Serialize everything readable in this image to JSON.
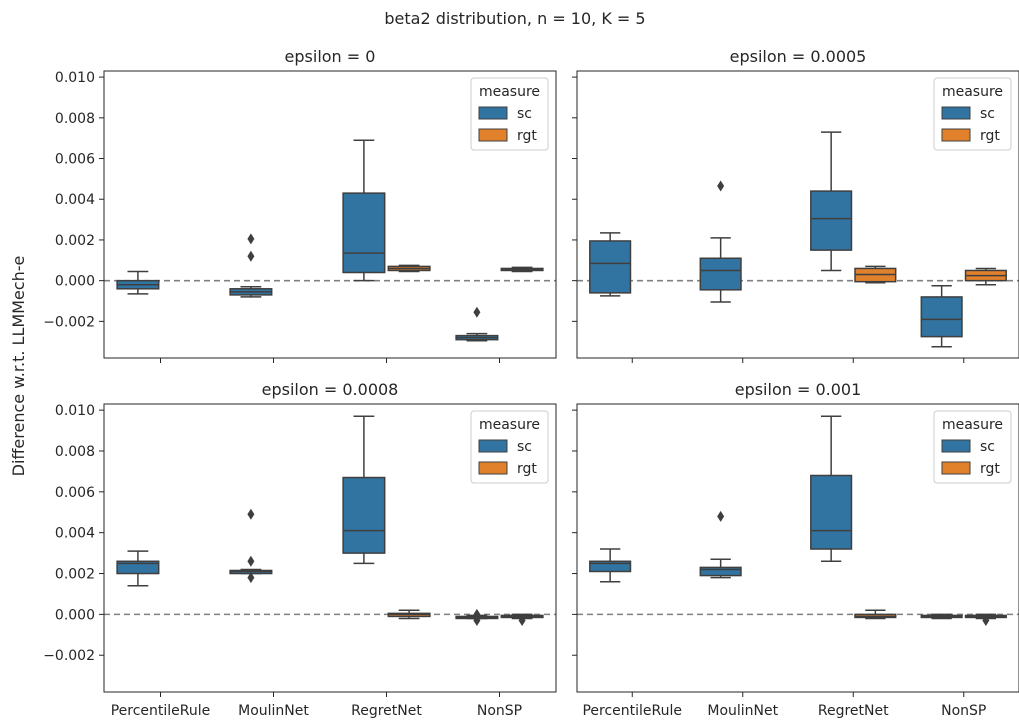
{
  "suptitle": "beta2 distribution, n = 10, K = 5",
  "ylabel": "Difference w.r.t. LLMMech-e",
  "legend_title": "measure",
  "colors": {
    "sc": "#3274a1",
    "rgt": "#e1812c",
    "box_edge": "#3f3f3f",
    "zero_line": "#808080"
  },
  "chart_data": [
    {
      "type": "box",
      "title": "epsilon = 0",
      "categories": [
        "PercentileRule",
        "MoulinNet",
        "RegretNet",
        "NonSP"
      ],
      "ylim": [
        -0.0038,
        0.0103
      ],
      "yticks": [
        -0.002,
        0.0,
        0.002,
        0.004,
        0.006,
        0.008,
        0.01
      ],
      "ytick_labels": [
        "−0.002",
        "0.000",
        "0.002",
        "0.004",
        "0.006",
        "0.008",
        "0.010"
      ],
      "series": [
        {
          "name": "sc",
          "boxes": [
            {
              "whislo": -0.00065,
              "q1": -0.0004,
              "med": -0.0002,
              "q3": 0.0,
              "whishi": 0.00045,
              "fliers": []
            },
            {
              "whislo": -0.0008,
              "q1": -0.0007,
              "med": -0.00055,
              "q3": -0.0004,
              "whishi": -0.0003,
              "fliers": [
                0.0012,
                0.00205
              ]
            },
            {
              "whislo": 0.0,
              "q1": 0.0004,
              "med": 0.00135,
              "q3": 0.0043,
              "whishi": 0.0069,
              "fliers": []
            },
            {
              "whislo": -0.00295,
              "q1": -0.0029,
              "med": -0.0028,
              "q3": -0.0027,
              "whishi": -0.0026,
              "fliers": [
                -0.00155
              ]
            }
          ]
        },
        {
          "name": "rgt",
          "boxes": [
            null,
            null,
            {
              "whislo": 0.00045,
              "q1": 0.0005,
              "med": 0.0006,
              "q3": 0.0007,
              "whishi": 0.00075,
              "fliers": []
            },
            {
              "whislo": 0.00045,
              "q1": 0.0005,
              "med": 0.00055,
              "q3": 0.0006,
              "whishi": 0.00065,
              "fliers": []
            }
          ]
        }
      ]
    },
    {
      "type": "box",
      "title": "epsilon = 0.0005",
      "categories": [
        "PercentileRule",
        "MoulinNet",
        "RegretNet",
        "NonSP"
      ],
      "ylim": [
        -0.0038,
        0.0103
      ],
      "yticks": [
        -0.002,
        0.0,
        0.002,
        0.004,
        0.006,
        0.008,
        0.01
      ],
      "ytick_labels": [
        "−0.002",
        "0.000",
        "0.002",
        "0.004",
        "0.006",
        "0.008",
        "0.010"
      ],
      "series": [
        {
          "name": "sc",
          "boxes": [
            {
              "whislo": -0.00075,
              "q1": -0.0006,
              "med": 0.00085,
              "q3": 0.00195,
              "whishi": 0.00235,
              "fliers": []
            },
            {
              "whislo": -0.00105,
              "q1": -0.00045,
              "med": 0.0005,
              "q3": 0.0011,
              "whishi": 0.0021,
              "fliers": [
                0.00465
              ]
            },
            {
              "whislo": 0.0005,
              "q1": 0.0015,
              "med": 0.00305,
              "q3": 0.0044,
              "whishi": 0.0073,
              "fliers": []
            },
            {
              "whislo": -0.00325,
              "q1": -0.00275,
              "med": -0.0019,
              "q3": -0.0008,
              "whishi": -0.00025,
              "fliers": []
            }
          ]
        },
        {
          "name": "rgt",
          "boxes": [
            null,
            null,
            {
              "whislo": -0.0001,
              "q1": -5e-05,
              "med": 0.0003,
              "q3": 0.0006,
              "whishi": 0.0007,
              "fliers": []
            },
            {
              "whislo": -0.0002,
              "q1": 0.0,
              "med": 0.00025,
              "q3": 0.0005,
              "whishi": 0.0006,
              "fliers": []
            }
          ]
        }
      ]
    },
    {
      "type": "box",
      "title": "epsilon = 0.0008",
      "categories": [
        "PercentileRule",
        "MoulinNet",
        "RegretNet",
        "NonSP"
      ],
      "ylim": [
        -0.0038,
        0.0103
      ],
      "yticks": [
        -0.002,
        0.0,
        0.002,
        0.004,
        0.006,
        0.008,
        0.01
      ],
      "ytick_labels": [
        "−0.002",
        "0.000",
        "0.002",
        "0.004",
        "0.006",
        "0.008",
        "0.010"
      ],
      "series": [
        {
          "name": "sc",
          "boxes": [
            {
              "whislo": 0.0014,
              "q1": 0.002,
              "med": 0.0025,
              "q3": 0.0026,
              "whishi": 0.0031,
              "fliers": []
            },
            {
              "whislo": 0.002,
              "q1": 0.002,
              "med": 0.0021,
              "q3": 0.00215,
              "whishi": 0.0022,
              "fliers": [
                0.0049,
                0.0026,
                0.0018
              ]
            },
            {
              "whislo": 0.0025,
              "q1": 0.003,
              "med": 0.0041,
              "q3": 0.0067,
              "whishi": 0.0097,
              "fliers": []
            },
            {
              "whislo": -0.0002,
              "q1": -0.0002,
              "med": -0.00015,
              "q3": -0.0001,
              "whishi": -5e-05,
              "fliers": [
                -0.0003,
                0.0
              ]
            }
          ]
        },
        {
          "name": "rgt",
          "boxes": [
            null,
            null,
            {
              "whislo": -0.0002,
              "q1": -0.0001,
              "med": 0.0,
              "q3": 5e-05,
              "whishi": 0.0002,
              "fliers": []
            },
            {
              "whislo": -0.0002,
              "q1": -0.00015,
              "med": -0.0001,
              "q3": -5e-05,
              "whishi": 0.0,
              "fliers": [
                -0.0003
              ]
            }
          ]
        }
      ]
    },
    {
      "type": "box",
      "title": "epsilon = 0.001",
      "categories": [
        "PercentileRule",
        "MoulinNet",
        "RegretNet",
        "NonSP"
      ],
      "ylim": [
        -0.0038,
        0.0103
      ],
      "yticks": [
        -0.002,
        0.0,
        0.002,
        0.004,
        0.006,
        0.008,
        0.01
      ],
      "ytick_labels": [
        "−0.002",
        "0.000",
        "0.002",
        "0.004",
        "0.006",
        "0.008",
        "0.010"
      ],
      "series": [
        {
          "name": "sc",
          "boxes": [
            {
              "whislo": 0.0016,
              "q1": 0.0021,
              "med": 0.0025,
              "q3": 0.0026,
              "whishi": 0.0032,
              "fliers": []
            },
            {
              "whislo": 0.0018,
              "q1": 0.0019,
              "med": 0.0022,
              "q3": 0.0023,
              "whishi": 0.0027,
              "fliers": [
                0.0048
              ]
            },
            {
              "whislo": 0.0026,
              "q1": 0.0032,
              "med": 0.0041,
              "q3": 0.0068,
              "whishi": 0.0097,
              "fliers": []
            },
            {
              "whislo": -0.0002,
              "q1": -0.00015,
              "med": -0.0001,
              "q3": -5e-05,
              "whishi": 0.0,
              "fliers": []
            }
          ]
        },
        {
          "name": "rgt",
          "boxes": [
            null,
            null,
            {
              "whislo": -0.0002,
              "q1": -0.00015,
              "med": -0.0001,
              "q3": 0.0,
              "whishi": 0.0002,
              "fliers": []
            },
            {
              "whislo": -0.0002,
              "q1": -0.00015,
              "med": -0.0001,
              "q3": -5e-05,
              "whishi": 0.0,
              "fliers": [
                -0.0003
              ]
            }
          ]
        }
      ]
    }
  ]
}
